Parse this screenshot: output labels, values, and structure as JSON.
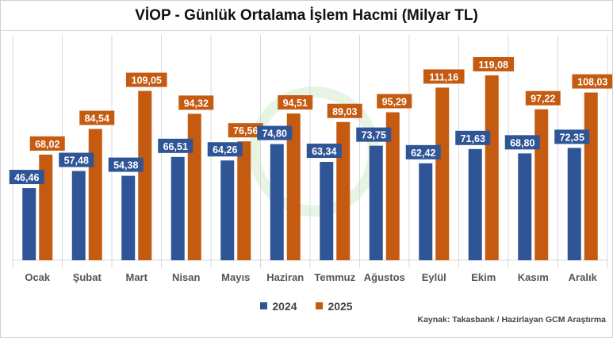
{
  "chart_data": {
    "type": "bar",
    "title": "VİOP - Günlük Ortalama İşlem Hacmi (Milyar TL)",
    "categories": [
      "Ocak",
      "Şubat",
      "Mart",
      "Nisan",
      "Mayıs",
      "Haziran",
      "Temmuz",
      "Ağustos",
      "Eylül",
      "Ekim",
      "Kasım",
      "Aralık"
    ],
    "series": [
      {
        "name": "2024",
        "color": "#2f5597",
        "values": [
          46.46,
          57.48,
          54.38,
          66.51,
          64.26,
          74.8,
          63.34,
          73.75,
          62.42,
          71.63,
          68.8,
          72.35
        ],
        "labels": [
          "46,46",
          "57,48",
          "54,38",
          "66,51",
          "64,26",
          "74,80",
          "63,34",
          "73,75",
          "62,42",
          "71,63",
          "68,80",
          "72,35"
        ]
      },
      {
        "name": "2025",
        "color": "#c55a11",
        "values": [
          68.02,
          84.54,
          109.05,
          94.32,
          76.56,
          94.51,
          89.03,
          95.29,
          111.16,
          119.08,
          97.22,
          108.03
        ],
        "labels": [
          "68,02",
          "84,54",
          "109,05",
          "94,32",
          "76,56",
          "94,51",
          "89,03",
          "95,29",
          "111,16",
          "119,08",
          "97,22",
          "108,03"
        ]
      }
    ],
    "ylim": [
      0,
      140
    ],
    "legend": "bottom",
    "grid": "vertical category separators"
  },
  "source": "Kaynak: Takasbank / Hazirlayan GCM Araştırma"
}
